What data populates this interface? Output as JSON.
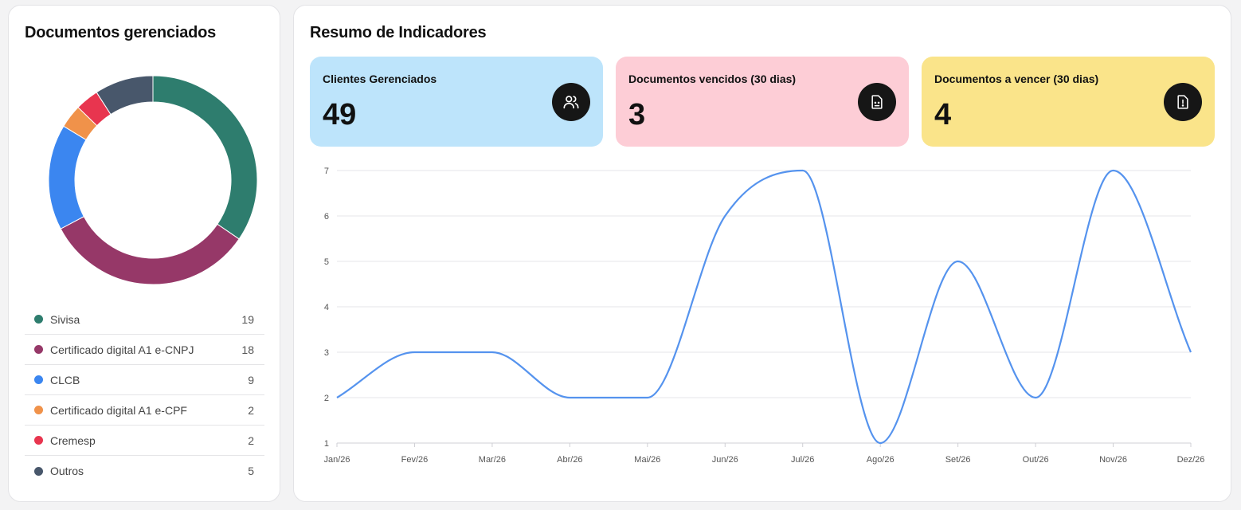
{
  "documents": {
    "title": "Documentos gerenciados",
    "items": [
      {
        "label": "Sivisa",
        "value": "19",
        "color": "#2e7d6e"
      },
      {
        "label": "Certificado digital A1 e-CNPJ",
        "value": "18",
        "color": "#963868"
      },
      {
        "label": "CLCB",
        "value": "9",
        "color": "#3b86f0"
      },
      {
        "label": "Certificado digital A1 e-CPF",
        "value": "2",
        "color": "#f0924a"
      },
      {
        "label": "Cremesp",
        "value": "2",
        "color": "#e8354f"
      },
      {
        "label": "Outros",
        "value": "5",
        "color": "#48576b"
      }
    ]
  },
  "summary": {
    "title": "Resumo de Indicadores",
    "kpis": [
      {
        "label": "Clientes Gerenciados",
        "value": "49",
        "icon": "users-icon",
        "color": "#bde4fb"
      },
      {
        "label": "Documentos vencidos (30 dias)",
        "value": "3",
        "icon": "file-sad-icon",
        "color": "#fdcdd6"
      },
      {
        "label": "Documentos a vencer (30 dias)",
        "value": "4",
        "icon": "file-alert-icon",
        "color": "#fae48a"
      }
    ]
  },
  "chart_data": {
    "type": "line",
    "categories": [
      "Jan/26",
      "Fev/26",
      "Mar/26",
      "Abr/26",
      "Mai/26",
      "Jun/26",
      "Jul/26",
      "Ago/26",
      "Set/26",
      "Out/26",
      "Nov/26",
      "Dez/26"
    ],
    "values": [
      2,
      3,
      3,
      2,
      2,
      6,
      7,
      1,
      5,
      2,
      7,
      3
    ],
    "yticks": [
      "1",
      "2",
      "3",
      "4",
      "5",
      "6",
      "7"
    ],
    "ylim": [
      1,
      7
    ],
    "grid": true,
    "line_color": "#5593ee"
  }
}
